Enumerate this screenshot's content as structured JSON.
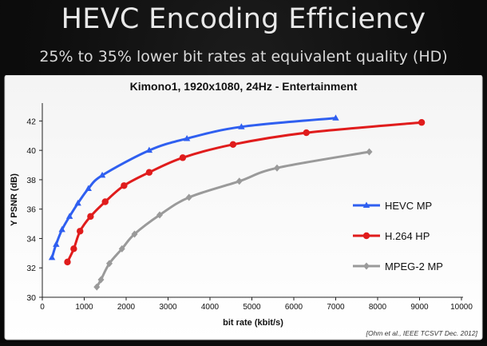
{
  "slide": {
    "title": "HEVC Encoding Efficiency",
    "subtitle": "25% to 35% lower bit rates at equivalent quality (HD)"
  },
  "chart_data": {
    "type": "line",
    "title": "Kimono1, 1920x1080, 24Hz - Entertainment",
    "xlabel": "bit rate (kbit/s)",
    "ylabel": "Y PSNR (dB)",
    "xlim": [
      0,
      10000
    ],
    "ylim": [
      30,
      43
    ],
    "xticks": [
      0,
      1000,
      2000,
      3000,
      4000,
      5000,
      6000,
      7000,
      8000,
      9000,
      10000
    ],
    "yticks": [
      30,
      32,
      34,
      36,
      38,
      40,
      42
    ],
    "grid": false,
    "legend_position": "right",
    "source_note": "[Ohm et al., IEEE TCSVT Dec. 2012]",
    "series": [
      {
        "name": "HEVC MP",
        "color": "#2f5ff0",
        "marker": "triangle",
        "points": [
          [
            230,
            32.7
          ],
          [
            330,
            33.6
          ],
          [
            470,
            34.6
          ],
          [
            650,
            35.5
          ],
          [
            850,
            36.4
          ],
          [
            1100,
            37.4
          ],
          [
            1430,
            38.3
          ],
          [
            2550,
            40.0
          ],
          [
            3450,
            40.8
          ],
          [
            4750,
            41.6
          ],
          [
            7000,
            42.2
          ]
        ]
      },
      {
        "name": "H.264 HP",
        "color": "#e01c1c",
        "marker": "circle",
        "points": [
          [
            600,
            32.4
          ],
          [
            750,
            33.3
          ],
          [
            900,
            34.5
          ],
          [
            1150,
            35.5
          ],
          [
            1500,
            36.5
          ],
          [
            1950,
            37.6
          ],
          [
            2550,
            38.5
          ],
          [
            3350,
            39.5
          ],
          [
            4550,
            40.4
          ],
          [
            6300,
            41.2
          ],
          [
            9050,
            41.9
          ]
        ]
      },
      {
        "name": "MPEG-2 MP",
        "color": "#9a9a9a",
        "marker": "diamond",
        "points": [
          [
            1300,
            30.7
          ],
          [
            1400,
            31.2
          ],
          [
            1600,
            32.3
          ],
          [
            1900,
            33.3
          ],
          [
            2200,
            34.3
          ],
          [
            2800,
            35.6
          ],
          [
            3500,
            36.8
          ],
          [
            4700,
            37.9
          ],
          [
            5600,
            38.8
          ],
          [
            7800,
            39.9
          ]
        ]
      }
    ]
  }
}
